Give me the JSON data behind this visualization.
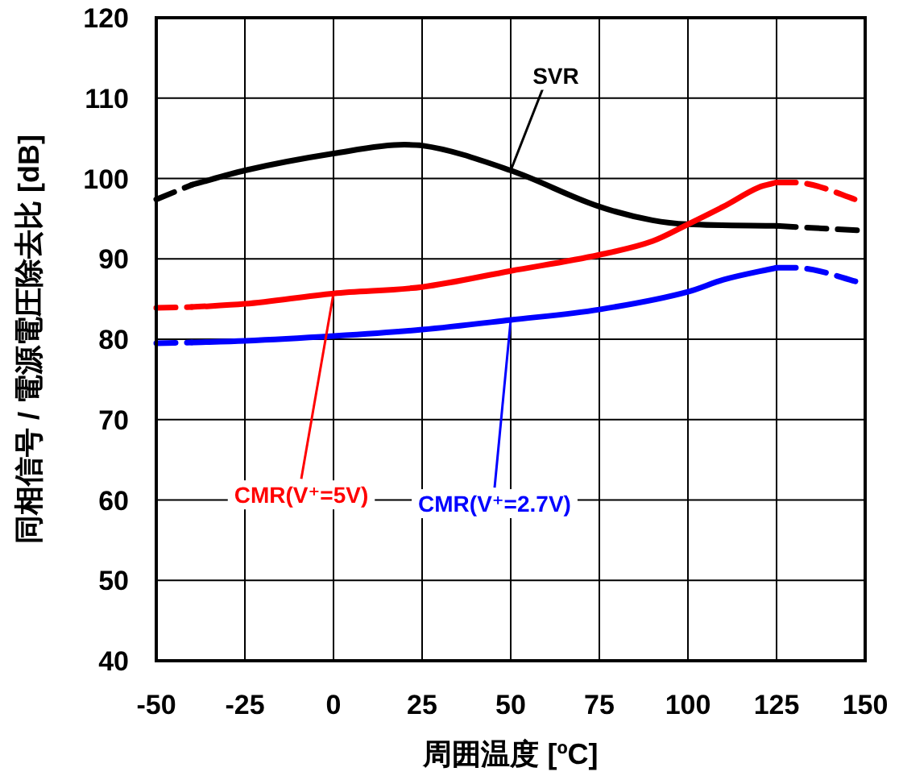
{
  "chart_data": {
    "type": "line",
    "xlabel": "周囲温度 [ºC]",
    "ylabel": "同相信号 / 電源電圧除去比 [dB]",
    "xlim": [
      -50,
      150
    ],
    "xticks": [
      -50,
      -25,
      0,
      25,
      50,
      75,
      100,
      125,
      150
    ],
    "ylim": [
      40,
      120
    ],
    "yticks": [
      40,
      50,
      60,
      70,
      80,
      90,
      100,
      110,
      120
    ],
    "grid": true,
    "series": [
      {
        "name": "SVR",
        "color": "#000000",
        "line_style": "solid",
        "x": [
          -40,
          -25,
          0,
          20,
          25,
          50,
          75,
          90,
          100,
          125
        ],
        "values": [
          99.2,
          101,
          103.1,
          104.2,
          104.1,
          101,
          96.5,
          94.8,
          94.3,
          94.1
        ]
      },
      {
        "color": "#000000",
        "line_style": "dashed",
        "x": [
          -50,
          -40
        ],
        "values": [
          97.4,
          99.2
        ]
      },
      {
        "color": "#000000",
        "line_style": "dashed",
        "x": [
          125,
          150
        ],
        "values": [
          94.1,
          93.5
        ]
      },
      {
        "name": "CMR(V⁺=5V)",
        "color": "#ff0000",
        "line_style": "solid",
        "x": [
          -40,
          -25,
          0,
          25,
          50,
          75,
          90,
          100,
          110,
          120,
          125
        ],
        "values": [
          84,
          84.4,
          85.7,
          86.5,
          88.5,
          90.5,
          92.2,
          94.3,
          96.5,
          98.9,
          99.5
        ]
      },
      {
        "color": "#ff0000",
        "line_style": "dashed",
        "x": [
          -50,
          -40
        ],
        "values": [
          83.9,
          84
        ]
      },
      {
        "color": "#ff0000",
        "line_style": "dashed",
        "x": [
          125,
          130,
          150
        ],
        "values": [
          99.5,
          99.5,
          97
        ]
      },
      {
        "name": "CMR(V⁺=2.7V)",
        "color": "#0000ff",
        "line_style": "solid",
        "x": [
          -40,
          -25,
          0,
          25,
          50,
          75,
          100,
          110,
          125
        ],
        "values": [
          79.6,
          79.8,
          80.4,
          81.2,
          82.4,
          83.7,
          85.9,
          87.4,
          88.9
        ]
      },
      {
        "color": "#0000ff",
        "line_style": "dashed",
        "x": [
          -50,
          -40
        ],
        "values": [
          79.5,
          79.6
        ]
      },
      {
        "color": "#0000ff",
        "line_style": "dashed",
        "x": [
          125,
          130,
          150
        ],
        "values": [
          88.9,
          88.9,
          86.9
        ]
      }
    ]
  }
}
